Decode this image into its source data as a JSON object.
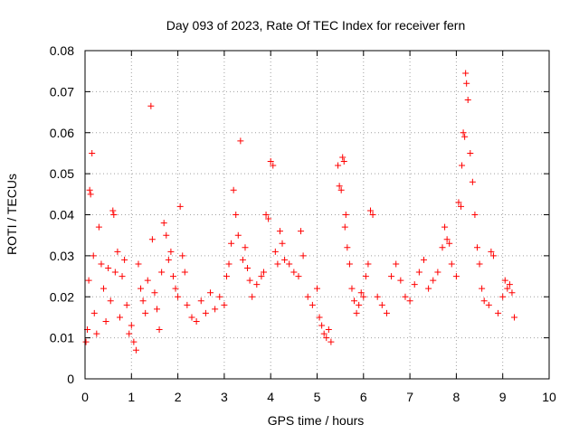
{
  "chart_data": {
    "type": "scatter",
    "title": "Day 093 of 2023, Rate Of TEC Index for receiver fern",
    "xlabel": "GPS time / hours",
    "ylabel": "ROTI / TECUs",
    "xlim": [
      0,
      10
    ],
    "ylim": [
      0,
      0.08
    ],
    "xticks": [
      "0",
      "1",
      "2",
      "3",
      "4",
      "5",
      "6",
      "7",
      "8",
      "9",
      "10"
    ],
    "yticks": [
      "0",
      "0.01",
      "0.02",
      "0.03",
      "0.04",
      "0.05",
      "0.06",
      "0.07",
      "0.08"
    ],
    "grid": true,
    "marker": "+",
    "series": [
      {
        "color": "#ff0000",
        "points": [
          [
            0.02,
            0.009
          ],
          [
            0.05,
            0.012
          ],
          [
            0.08,
            0.024
          ],
          [
            0.1,
            0.046
          ],
          [
            0.12,
            0.045
          ],
          [
            0.15,
            0.055
          ],
          [
            0.18,
            0.03
          ],
          [
            0.2,
            0.016
          ],
          [
            0.25,
            0.011
          ],
          [
            0.3,
            0.037
          ],
          [
            0.35,
            0.028
          ],
          [
            0.4,
            0.022
          ],
          [
            0.45,
            0.014
          ],
          [
            0.5,
            0.027
          ],
          [
            0.55,
            0.019
          ],
          [
            0.6,
            0.041
          ],
          [
            0.62,
            0.04
          ],
          [
            0.65,
            0.026
          ],
          [
            0.7,
            0.031
          ],
          [
            0.75,
            0.015
          ],
          [
            0.8,
            0.025
          ],
          [
            0.85,
            0.029
          ],
          [
            0.9,
            0.018
          ],
          [
            0.95,
            0.011
          ],
          [
            1.0,
            0.013
          ],
          [
            1.05,
            0.009
          ],
          [
            1.1,
            0.007
          ],
          [
            1.15,
            0.028
          ],
          [
            1.2,
            0.022
          ],
          [
            1.25,
            0.019
          ],
          [
            1.3,
            0.016
          ],
          [
            1.35,
            0.024
          ],
          [
            1.42,
            0.0665
          ],
          [
            1.45,
            0.034
          ],
          [
            1.5,
            0.021
          ],
          [
            1.55,
            0.017
          ],
          [
            1.6,
            0.012
          ],
          [
            1.65,
            0.026
          ],
          [
            1.7,
            0.038
          ],
          [
            1.75,
            0.035
          ],
          [
            1.8,
            0.029
          ],
          [
            1.85,
            0.031
          ],
          [
            1.9,
            0.025
          ],
          [
            1.95,
            0.022
          ],
          [
            2.0,
            0.02
          ],
          [
            2.05,
            0.042
          ],
          [
            2.1,
            0.03
          ],
          [
            2.15,
            0.026
          ],
          [
            2.2,
            0.018
          ],
          [
            2.3,
            0.015
          ],
          [
            2.4,
            0.014
          ],
          [
            2.5,
            0.019
          ],
          [
            2.6,
            0.016
          ],
          [
            2.7,
            0.021
          ],
          [
            2.8,
            0.017
          ],
          [
            2.9,
            0.02
          ],
          [
            3.0,
            0.018
          ],
          [
            3.05,
            0.025
          ],
          [
            3.1,
            0.028
          ],
          [
            3.15,
            0.033
          ],
          [
            3.2,
            0.046
          ],
          [
            3.25,
            0.04
          ],
          [
            3.3,
            0.035
          ],
          [
            3.35,
            0.058
          ],
          [
            3.4,
            0.029
          ],
          [
            3.45,
            0.032
          ],
          [
            3.5,
            0.027
          ],
          [
            3.55,
            0.024
          ],
          [
            3.6,
            0.02
          ],
          [
            3.7,
            0.023
          ],
          [
            3.8,
            0.025
          ],
          [
            3.85,
            0.026
          ],
          [
            3.9,
            0.04
          ],
          [
            3.95,
            0.039
          ],
          [
            4.0,
            0.053
          ],
          [
            4.05,
            0.052
          ],
          [
            4.1,
            0.031
          ],
          [
            4.15,
            0.028
          ],
          [
            4.2,
            0.036
          ],
          [
            4.25,
            0.033
          ],
          [
            4.3,
            0.029
          ],
          [
            4.4,
            0.028
          ],
          [
            4.5,
            0.026
          ],
          [
            4.6,
            0.025
          ],
          [
            4.65,
            0.036
          ],
          [
            4.7,
            0.03
          ],
          [
            4.8,
            0.02
          ],
          [
            4.9,
            0.018
          ],
          [
            5.0,
            0.022
          ],
          [
            5.05,
            0.015
          ],
          [
            5.1,
            0.013
          ],
          [
            5.15,
            0.011
          ],
          [
            5.2,
            0.01
          ],
          [
            5.25,
            0.012
          ],
          [
            5.3,
            0.009
          ],
          [
            5.45,
            0.052
          ],
          [
            5.48,
            0.047
          ],
          [
            5.52,
            0.046
          ],
          [
            5.55,
            0.054
          ],
          [
            5.58,
            0.053
          ],
          [
            5.6,
            0.037
          ],
          [
            5.62,
            0.04
          ],
          [
            5.65,
            0.032
          ],
          [
            5.7,
            0.028
          ],
          [
            5.75,
            0.022
          ],
          [
            5.8,
            0.019
          ],
          [
            5.85,
            0.016
          ],
          [
            5.9,
            0.018
          ],
          [
            5.95,
            0.021
          ],
          [
            6.0,
            0.02
          ],
          [
            6.05,
            0.025
          ],
          [
            6.1,
            0.028
          ],
          [
            6.15,
            0.041
          ],
          [
            6.2,
            0.04
          ],
          [
            6.3,
            0.02
          ],
          [
            6.4,
            0.018
          ],
          [
            6.5,
            0.016
          ],
          [
            6.6,
            0.025
          ],
          [
            6.7,
            0.028
          ],
          [
            6.8,
            0.024
          ],
          [
            6.9,
            0.02
          ],
          [
            7.0,
            0.019
          ],
          [
            7.1,
            0.023
          ],
          [
            7.2,
            0.026
          ],
          [
            7.3,
            0.029
          ],
          [
            7.4,
            0.022
          ],
          [
            7.5,
            0.024
          ],
          [
            7.6,
            0.026
          ],
          [
            7.7,
            0.032
          ],
          [
            7.75,
            0.037
          ],
          [
            7.8,
            0.034
          ],
          [
            7.85,
            0.033
          ],
          [
            7.9,
            0.028
          ],
          [
            8.0,
            0.025
          ],
          [
            8.05,
            0.043
          ],
          [
            8.1,
            0.042
          ],
          [
            8.12,
            0.052
          ],
          [
            8.15,
            0.06
          ],
          [
            8.18,
            0.059
          ],
          [
            8.2,
            0.0745
          ],
          [
            8.22,
            0.072
          ],
          [
            8.25,
            0.068
          ],
          [
            8.3,
            0.055
          ],
          [
            8.35,
            0.048
          ],
          [
            8.4,
            0.04
          ],
          [
            8.45,
            0.032
          ],
          [
            8.5,
            0.028
          ],
          [
            8.55,
            0.022
          ],
          [
            8.6,
            0.019
          ],
          [
            8.7,
            0.018
          ],
          [
            8.75,
            0.031
          ],
          [
            8.8,
            0.03
          ],
          [
            8.9,
            0.016
          ],
          [
            9.0,
            0.02
          ],
          [
            9.05,
            0.024
          ],
          [
            9.1,
            0.022
          ],
          [
            9.15,
            0.023
          ],
          [
            9.2,
            0.021
          ],
          [
            9.25,
            0.015
          ]
        ]
      }
    ]
  }
}
